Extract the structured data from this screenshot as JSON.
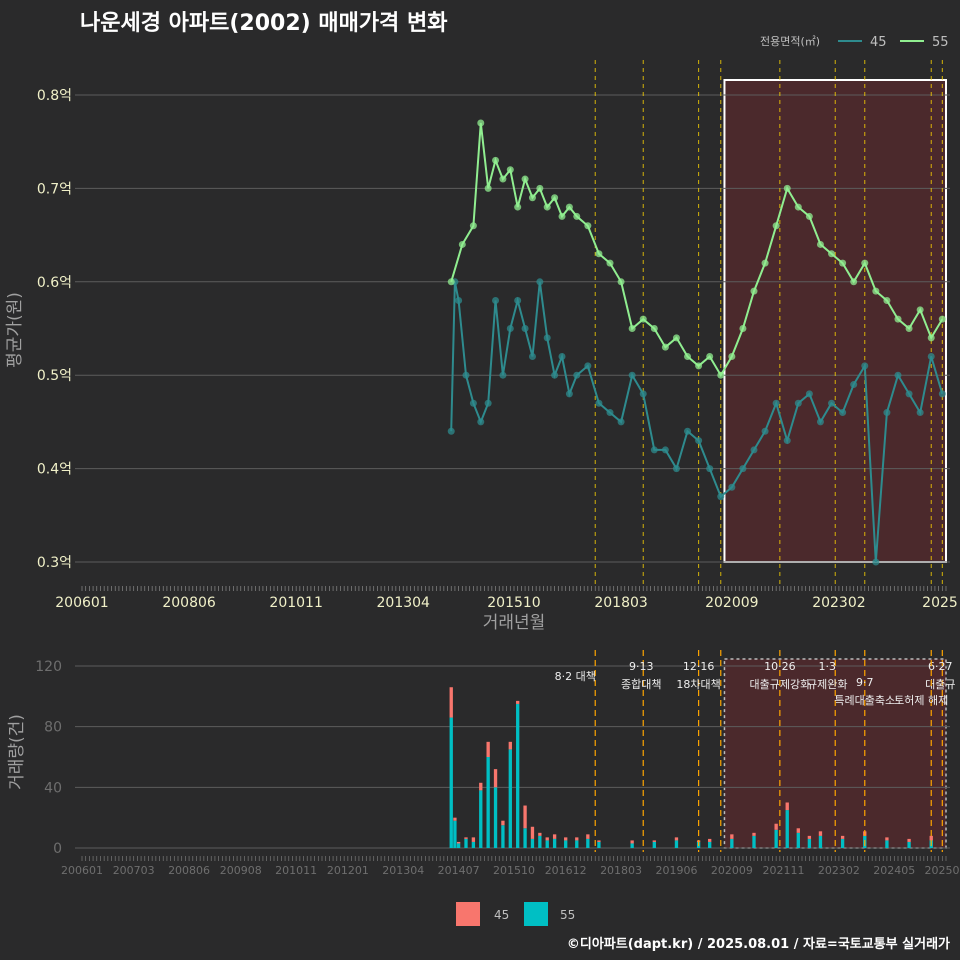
{
  "title": "나운세경 아파트(2002) 매매가격 변화",
  "footer": "©디아파트(dapt.kr) / 2025.08.01 / 자료=국토교통부 실거래가",
  "colors": {
    "background": "#2a2a2b",
    "grid": "#5c5c5c",
    "series_45_line": "#2e8b8e",
    "series_55_line": "#90ee90",
    "bar_45": "#f8766d",
    "bar_55": "#00bfc4",
    "event_line": "#ffd700",
    "highlight_fill": "#5a2a2e",
    "tick_text": "#f0f0c8"
  },
  "legend_top": {
    "title": "전용면적(㎡)",
    "items": [
      "45",
      "55"
    ]
  },
  "legend_bottom": {
    "items": [
      "45",
      "55"
    ]
  },
  "chart_data": [
    {
      "type": "line",
      "title": "나운세경 아파트(2002) 매매가격 변화",
      "xlabel": "거래년월",
      "ylabel": "평균가(원)",
      "x_tick_labels": [
        "200601",
        "200806",
        "201011",
        "201304",
        "201510",
        "201803",
        "202009",
        "202302",
        "2025"
      ],
      "y_tick_labels": [
        "0.3억",
        "0.4억",
        "0.5억",
        "0.6억",
        "0.7억",
        "0.8억"
      ],
      "ylim": [
        0.3,
        0.8
      ],
      "grid": true,
      "legend_position": "top-right",
      "highlight_period": [
        "2020-07",
        "2025-07"
      ],
      "series": [
        {
          "name": "45",
          "points": [
            [
              "2014-05",
              0.44
            ],
            [
              "2014-06",
              0.6
            ],
            [
              "2014-07",
              0.58
            ],
            [
              "2014-09",
              0.5
            ],
            [
              "2014-11",
              0.47
            ],
            [
              "2015-01",
              0.45
            ],
            [
              "2015-03",
              0.47
            ],
            [
              "2015-05",
              0.58
            ],
            [
              "2015-07",
              0.5
            ],
            [
              "2015-09",
              0.55
            ],
            [
              "2015-11",
              0.58
            ],
            [
              "2016-01",
              0.55
            ],
            [
              "2016-03",
              0.52
            ],
            [
              "2016-05",
              0.6
            ],
            [
              "2016-07",
              0.54
            ],
            [
              "2016-09",
              0.5
            ],
            [
              "2016-11",
              0.52
            ],
            [
              "2017-01",
              0.48
            ],
            [
              "2017-03",
              0.5
            ],
            [
              "2017-06",
              0.51
            ],
            [
              "2017-09",
              0.47
            ],
            [
              "2017-12",
              0.46
            ],
            [
              "2018-03",
              0.45
            ],
            [
              "2018-06",
              0.5
            ],
            [
              "2018-09",
              0.48
            ],
            [
              "2018-12",
              0.42
            ],
            [
              "2019-03",
              0.42
            ],
            [
              "2019-06",
              0.4
            ],
            [
              "2019-09",
              0.44
            ],
            [
              "2019-12",
              0.43
            ],
            [
              "2020-03",
              0.4
            ],
            [
              "2020-06",
              0.37
            ],
            [
              "2020-09",
              0.38
            ],
            [
              "2020-12",
              0.4
            ],
            [
              "2021-03",
              0.42
            ],
            [
              "2021-06",
              0.44
            ],
            [
              "2021-09",
              0.47
            ],
            [
              "2021-12",
              0.43
            ],
            [
              "2022-03",
              0.47
            ],
            [
              "2022-06",
              0.48
            ],
            [
              "2022-09",
              0.45
            ],
            [
              "2022-12",
              0.47
            ],
            [
              "2023-03",
              0.46
            ],
            [
              "2023-06",
              0.49
            ],
            [
              "2023-09",
              0.51
            ],
            [
              "2023-12",
              0.3
            ],
            [
              "2024-03",
              0.46
            ],
            [
              "2024-06",
              0.5
            ],
            [
              "2024-09",
              0.48
            ],
            [
              "2024-12",
              0.46
            ],
            [
              "2025-03",
              0.52
            ],
            [
              "2025-06",
              0.48
            ]
          ]
        },
        {
          "name": "55",
          "points": [
            [
              "2014-05",
              0.6
            ],
            [
              "2014-08",
              0.64
            ],
            [
              "2014-11",
              0.66
            ],
            [
              "2015-01",
              0.77
            ],
            [
              "2015-03",
              0.7
            ],
            [
              "2015-05",
              0.73
            ],
            [
              "2015-07",
              0.71
            ],
            [
              "2015-09",
              0.72
            ],
            [
              "2015-11",
              0.68
            ],
            [
              "2016-01",
              0.71
            ],
            [
              "2016-03",
              0.69
            ],
            [
              "2016-05",
              0.7
            ],
            [
              "2016-07",
              0.68
            ],
            [
              "2016-09",
              0.69
            ],
            [
              "2016-11",
              0.67
            ],
            [
              "2017-01",
              0.68
            ],
            [
              "2017-03",
              0.67
            ],
            [
              "2017-06",
              0.66
            ],
            [
              "2017-09",
              0.63
            ],
            [
              "2017-12",
              0.62
            ],
            [
              "2018-03",
              0.6
            ],
            [
              "2018-06",
              0.55
            ],
            [
              "2018-09",
              0.56
            ],
            [
              "2018-12",
              0.55
            ],
            [
              "2019-03",
              0.53
            ],
            [
              "2019-06",
              0.54
            ],
            [
              "2019-09",
              0.52
            ],
            [
              "2019-12",
              0.51
            ],
            [
              "2020-03",
              0.52
            ],
            [
              "2020-06",
              0.5
            ],
            [
              "2020-09",
              0.52
            ],
            [
              "2020-12",
              0.55
            ],
            [
              "2021-03",
              0.59
            ],
            [
              "2021-06",
              0.62
            ],
            [
              "2021-09",
              0.66
            ],
            [
              "2021-12",
              0.7
            ],
            [
              "2022-03",
              0.68
            ],
            [
              "2022-06",
              0.67
            ],
            [
              "2022-09",
              0.64
            ],
            [
              "2022-12",
              0.63
            ],
            [
              "2023-03",
              0.62
            ],
            [
              "2023-06",
              0.6
            ],
            [
              "2023-09",
              0.62
            ],
            [
              "2023-12",
              0.59
            ],
            [
              "2024-03",
              0.58
            ],
            [
              "2024-06",
              0.56
            ],
            [
              "2024-09",
              0.55
            ],
            [
              "2024-12",
              0.57
            ],
            [
              "2025-03",
              0.54
            ],
            [
              "2025-06",
              0.56
            ]
          ]
        }
      ]
    },
    {
      "type": "bar",
      "xlabel": "",
      "ylabel": "거래량(건)",
      "ylim": [
        0,
        125
      ],
      "y_tick_labels": [
        "0",
        "40",
        "80",
        "120"
      ],
      "x_tick_labels": [
        "200601",
        "200703",
        "200806",
        "200908",
        "201011",
        "201201",
        "201304",
        "201407",
        "201510",
        "201612",
        "201803",
        "201906",
        "202009",
        "202111",
        "202302",
        "202405",
        "20250"
      ],
      "stacked": true,
      "highlight_period": [
        "2020-07",
        "2025-07"
      ],
      "events": [
        {
          "date": "2017-08",
          "label": "8·2 대책"
        },
        {
          "date": "2018-09",
          "label": "9·13\n종합대책"
        },
        {
          "date": "2019-12",
          "label": "12·16\n18차대책"
        },
        {
          "date": "2020-06",
          "label": ""
        },
        {
          "date": "2021-10",
          "label": "10·26\n대출규제강화"
        },
        {
          "date": "2023-01",
          "label": "1·3\n규제완화"
        },
        {
          "date": "2023-09",
          "label": "9·7\n특례대출축소"
        },
        {
          "date": "2025-06",
          "label": "6·27\n대출규"
        },
        {
          "date": "2025-03",
          "label": "토허제 해제"
        }
      ],
      "series": [
        {
          "name": "45",
          "values": [
            [
              "2014-05",
              20
            ],
            [
              "2014-06",
              2
            ],
            [
              "2014-07",
              1
            ],
            [
              "2014-09",
              1
            ],
            [
              "2014-11",
              3
            ],
            [
              "2015-01",
              5
            ],
            [
              "2015-03",
              10
            ],
            [
              "2015-05",
              12
            ],
            [
              "2015-07",
              3
            ],
            [
              "2015-09",
              5
            ],
            [
              "2015-11",
              2
            ],
            [
              "2016-01",
              15
            ],
            [
              "2016-03",
              8
            ],
            [
              "2016-05",
              2
            ],
            [
              "2016-07",
              2
            ],
            [
              "2016-09",
              3
            ],
            [
              "2016-12",
              2
            ],
            [
              "2017-03",
              2
            ],
            [
              "2017-06",
              3
            ],
            [
              "2017-09",
              1
            ],
            [
              "2018-06",
              2
            ],
            [
              "2018-12",
              1
            ],
            [
              "2019-06",
              2
            ],
            [
              "2019-12",
              1
            ],
            [
              "2020-03",
              2
            ],
            [
              "2020-09",
              3
            ],
            [
              "2021-03",
              2
            ],
            [
              "2021-09",
              4
            ],
            [
              "2021-12",
              5
            ],
            [
              "2022-03",
              3
            ],
            [
              "2022-06",
              2
            ],
            [
              "2022-09",
              3
            ],
            [
              "2023-03",
              2
            ],
            [
              "2023-09",
              3
            ],
            [
              "2024-03",
              2
            ],
            [
              "2024-09",
              2
            ],
            [
              "2025-03",
              3
            ]
          ]
        },
        {
          "name": "55",
          "values": [
            [
              "2014-05",
              86
            ],
            [
              "2014-06",
              18
            ],
            [
              "2014-07",
              3
            ],
            [
              "2014-09",
              6
            ],
            [
              "2014-11",
              4
            ],
            [
              "2015-01",
              38
            ],
            [
              "2015-03",
              60
            ],
            [
              "2015-05",
              40
            ],
            [
              "2015-07",
              15
            ],
            [
              "2015-09",
              65
            ],
            [
              "2015-11",
              95
            ],
            [
              "2016-01",
              13
            ],
            [
              "2016-03",
              6
            ],
            [
              "2016-05",
              8
            ],
            [
              "2016-07",
              5
            ],
            [
              "2016-09",
              6
            ],
            [
              "2016-12",
              5
            ],
            [
              "2017-03",
              5
            ],
            [
              "2017-06",
              6
            ],
            [
              "2017-09",
              4
            ],
            [
              "2018-06",
              3
            ],
            [
              "2018-12",
              4
            ],
            [
              "2019-06",
              5
            ],
            [
              "2019-12",
              4
            ],
            [
              "2020-03",
              4
            ],
            [
              "2020-09",
              6
            ],
            [
              "2021-03",
              8
            ],
            [
              "2021-09",
              12
            ],
            [
              "2021-12",
              25
            ],
            [
              "2022-03",
              10
            ],
            [
              "2022-06",
              6
            ],
            [
              "2022-09",
              8
            ],
            [
              "2023-03",
              6
            ],
            [
              "2023-09",
              8
            ],
            [
              "2024-03",
              5
            ],
            [
              "2024-09",
              4
            ],
            [
              "2025-03",
              5
            ]
          ]
        }
      ]
    }
  ]
}
